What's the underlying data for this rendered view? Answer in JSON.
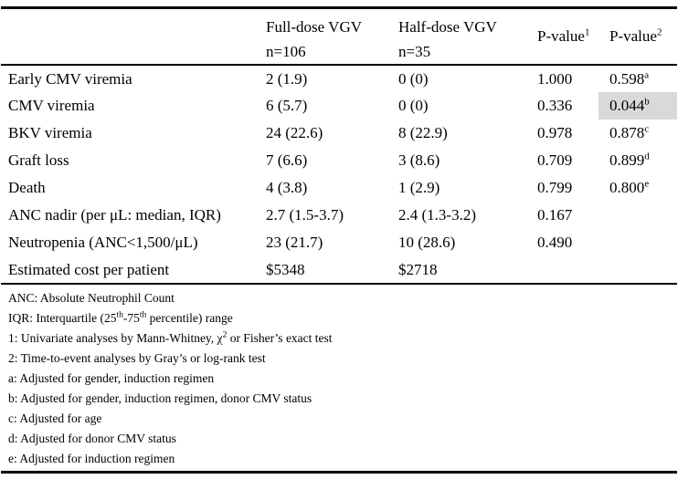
{
  "table": {
    "header": {
      "full_dose": {
        "line1": "Full-dose VGV",
        "line2": "n=106"
      },
      "half_dose": {
        "line1": "Half-dose VGV",
        "line2": "n=35"
      },
      "p1": {
        "base": "P-value",
        "sup": "1"
      },
      "p2": {
        "base": "P-value",
        "sup": "2"
      }
    },
    "highlight_color": "#d9d9d9",
    "rows": [
      {
        "label": "Early CMV viremia",
        "full": "2 (1.9)",
        "half": "0 (0)",
        "p1": "1.000",
        "p2": "0.598",
        "p2_sup": "a",
        "highlight": false
      },
      {
        "label": "CMV viremia",
        "full": "6 (5.7)",
        "half": "0 (0)",
        "p1": "0.336",
        "p2": "0.044",
        "p2_sup": "b",
        "highlight": true
      },
      {
        "label": "BKV viremia",
        "full": "24 (22.6)",
        "half": "8 (22.9)",
        "p1": "0.978",
        "p2": "0.878",
        "p2_sup": "c",
        "highlight": false
      },
      {
        "label": "Graft loss",
        "full": "7 (6.6)",
        "half": "3 (8.6)",
        "p1": "0.709",
        "p2": "0.899",
        "p2_sup": "d",
        "highlight": false
      },
      {
        "label": "Death",
        "full": "4 (3.8)",
        "half": "1 (2.9)",
        "p1": "0.799",
        "p2": "0.800",
        "p2_sup": "e",
        "highlight": false
      },
      {
        "label": "ANC nadir (per μL: median, IQR)",
        "full": "2.7 (1.5-3.7)",
        "half": "2.4 (1.3-3.2)",
        "p1": "0.167",
        "p2": "",
        "p2_sup": "",
        "highlight": false
      },
      {
        "label": "Neutropenia (ANC<1,500/μL)",
        "full": "23 (21.7)",
        "half": "10 (28.6)",
        "p1": "0.490",
        "p2": "",
        "p2_sup": "",
        "highlight": false
      },
      {
        "label": "Estimated cost per patient",
        "full": "$5348",
        "half": "$2718",
        "p1": "",
        "p2": "",
        "p2_sup": "",
        "highlight": false
      }
    ]
  },
  "footnotes": [
    [
      {
        "t": "ANC: Absolute Neutrophil Count"
      }
    ],
    [
      {
        "t": "IQR: Interquartile (25"
      },
      {
        "sup": "th"
      },
      {
        "t": "-75"
      },
      {
        "sup": "th"
      },
      {
        "t": " percentile) range"
      }
    ],
    [
      {
        "t": "1: Univariate analyses by Mann-Whitney, χ"
      },
      {
        "sup": "2"
      },
      {
        "t": " or Fisher’s exact test"
      }
    ],
    [
      {
        "t": "2: Time-to-event analyses by Gray’s or log-rank test"
      }
    ],
    [
      {
        "t": "a: Adjusted for gender, induction regimen"
      }
    ],
    [
      {
        "t": "b: Adjusted for gender, induction regimen, donor CMV status"
      }
    ],
    [
      {
        "t": "c: Adjusted for age"
      }
    ],
    [
      {
        "t": "d: Adjusted for donor CMV status"
      }
    ],
    [
      {
        "t": "e: Adjusted for induction regimen"
      }
    ]
  ]
}
